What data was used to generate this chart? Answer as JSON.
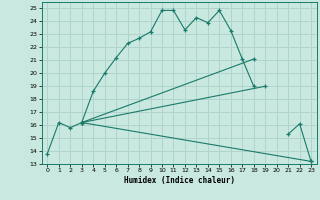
{
  "xlabel": "Humidex (Indice chaleur)",
  "bg_color": "#c8e8e0",
  "grid_color": "#b0d4cc",
  "line_color": "#1a7a6a",
  "xlim": [
    -0.5,
    23.5
  ],
  "ylim": [
    13,
    25.5
  ],
  "xticks": [
    0,
    1,
    2,
    3,
    4,
    5,
    6,
    7,
    8,
    9,
    10,
    11,
    12,
    13,
    14,
    15,
    16,
    17,
    18,
    19,
    20,
    21,
    22,
    23
  ],
  "yticks": [
    13,
    14,
    15,
    16,
    17,
    18,
    19,
    20,
    21,
    22,
    23,
    24,
    25
  ],
  "series": [
    {
      "x": [
        0,
        1,
        2,
        3,
        4,
        5,
        6,
        7,
        8,
        9,
        10,
        11,
        12,
        13,
        14,
        15,
        16,
        17,
        18,
        19,
        21,
        22,
        23
      ],
      "y": [
        13.8,
        16.2,
        15.8,
        16.2,
        18.6,
        20.0,
        21.2,
        22.3,
        22.7,
        23.2,
        24.85,
        24.85,
        23.35,
        24.3,
        23.9,
        24.85,
        23.3,
        21.1,
        19.0,
        null,
        15.3,
        16.1,
        13.2
      ]
    },
    {
      "x": [
        3,
        23
      ],
      "y": [
        16.2,
        13.2
      ]
    },
    {
      "x": [
        3,
        19
      ],
      "y": [
        16.2,
        19.0
      ]
    },
    {
      "x": [
        3,
        18
      ],
      "y": [
        16.2,
        21.1
      ]
    }
  ]
}
